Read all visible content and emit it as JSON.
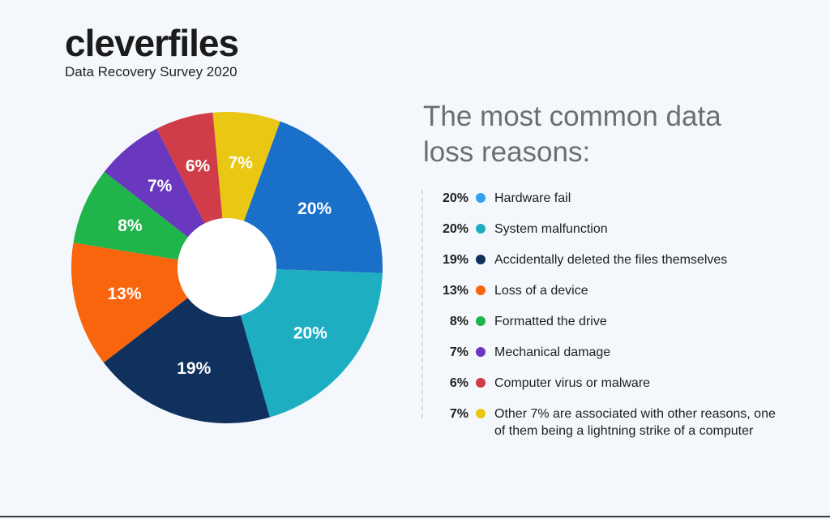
{
  "brand": {
    "logo_text": "cleverfiles",
    "subtitle": "Data Recovery Survey 2020"
  },
  "chart_data": {
    "type": "pie",
    "title": "The most common data loss reasons:",
    "donut": true,
    "slices": [
      {
        "label": "Hardware fail",
        "value": 20,
        "display": "20%",
        "color": "#1a6fc9"
      },
      {
        "label": "System malfunction",
        "value": 20,
        "display": "20%",
        "color": "#1eaec2"
      },
      {
        "label": "Accidentally deleted the files themselves",
        "value": 19,
        "display": "19%",
        "color": "#10305e"
      },
      {
        "label": "Loss of a device",
        "value": 13,
        "display": "13%",
        "color": "#f8650c"
      },
      {
        "label": "Formatted the drive",
        "value": 8,
        "display": "8%",
        "color": "#1fb54a"
      },
      {
        "label": "Mechanical damage",
        "value": 7,
        "display": "7%",
        "color": "#6a37bf"
      },
      {
        "label": "Computer virus or malware",
        "value": 6,
        "display": "6%",
        "color": "#d03d48"
      },
      {
        "label": "Other 7% are associated with other reasons, one of them being a lightning strike of a computer",
        "value": 7,
        "display": "7%",
        "color": "#e9c712"
      }
    ]
  },
  "colors": {
    "background": "#f4f8fc",
    "title_text": "#6e6e6e",
    "legend_legend_dot_hardware": "#2ea3f0"
  }
}
